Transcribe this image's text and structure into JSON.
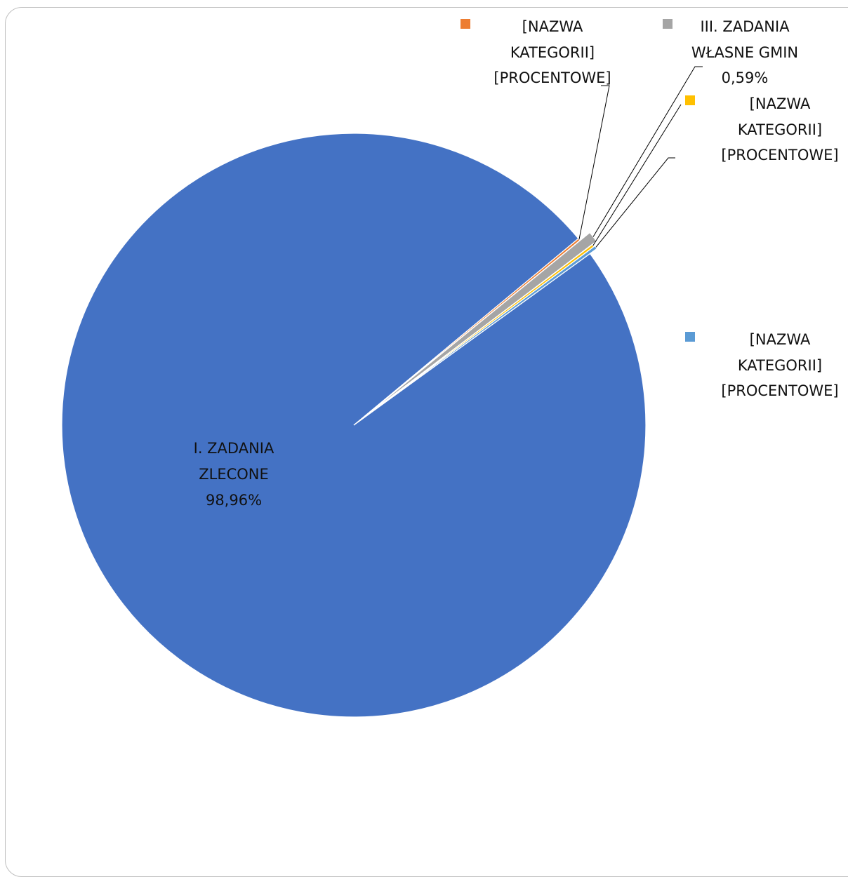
{
  "chart_data": {
    "type": "pie",
    "slices": [
      {
        "key": "zlecone",
        "label_lines": [
          "I. ZADANIA",
          "ZLECONE",
          "98,96%"
        ],
        "value": 98.96,
        "color": "#4472C4"
      },
      {
        "key": "orange",
        "label_lines": [
          "[NAZWA",
          "KATEGORII]",
          "[PROCENTOWE]"
        ],
        "value": 0.13,
        "color": "#ED7D31"
      },
      {
        "key": "gminy",
        "label_lines": [
          "III. ZADANIA",
          "WŁASNE GMIN",
          "0,59%"
        ],
        "value": 0.59,
        "color": "#A5A5A5"
      },
      {
        "key": "yellow",
        "label_lines": [
          "[NAZWA",
          "KATEGORII]",
          "[PROCENTOWE]"
        ],
        "value": 0.14,
        "color": "#FFC000"
      },
      {
        "key": "lightblue",
        "label_lines": [
          "[NAZWA",
          "KATEGORII]",
          "[PROCENTOWE]"
        ],
        "value": 0.18,
        "color": "#5B9BD5"
      }
    ],
    "start_angle_deg": -36,
    "legend": "beside labels"
  }
}
